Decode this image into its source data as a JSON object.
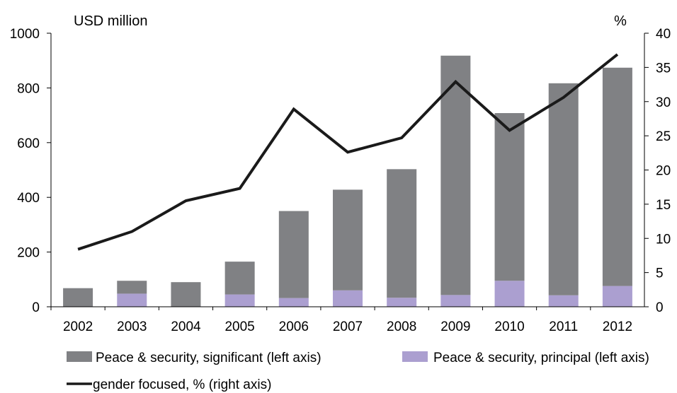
{
  "chart_data": {
    "type": "bar",
    "stacked": true,
    "categories": [
      "2002",
      "2003",
      "2004",
      "2005",
      "2006",
      "2007",
      "2008",
      "2009",
      "2010",
      "2011",
      "2012"
    ],
    "series": [
      {
        "name": "Peace & security, significant (left axis)",
        "type": "bar",
        "axis": "left",
        "color": "#808184",
        "values": [
          68,
          47,
          90,
          120,
          318,
          368,
          470,
          875,
          613,
          775,
          798
        ]
      },
      {
        "name": "Peace & security, principal (left axis)",
        "type": "bar",
        "axis": "left",
        "color": "#ab9fd0",
        "values": [
          0,
          48,
          0,
          45,
          32,
          60,
          33,
          43,
          95,
          42,
          76
        ]
      },
      {
        "name": "gender focused, % (right axis)",
        "type": "line",
        "axis": "right",
        "color": "#1a1a1a",
        "values": [
          8.4,
          11.0,
          15.5,
          17.3,
          28.9,
          22.6,
          24.7,
          32.9,
          25.8,
          30.6,
          36.9
        ]
      }
    ],
    "left_axis": {
      "label": "USD million",
      "ylim": [
        0,
        1000
      ],
      "ticks": [
        "1000",
        "800",
        "600",
        "400",
        "200",
        "0"
      ]
    },
    "right_axis": {
      "label": "%",
      "ylim": [
        0,
        40
      ],
      "ticks": [
        "40",
        "35",
        "30",
        "25",
        "20",
        "15",
        "10",
        "5",
        "0"
      ]
    },
    "grid": false,
    "legend_position": "bottom"
  }
}
